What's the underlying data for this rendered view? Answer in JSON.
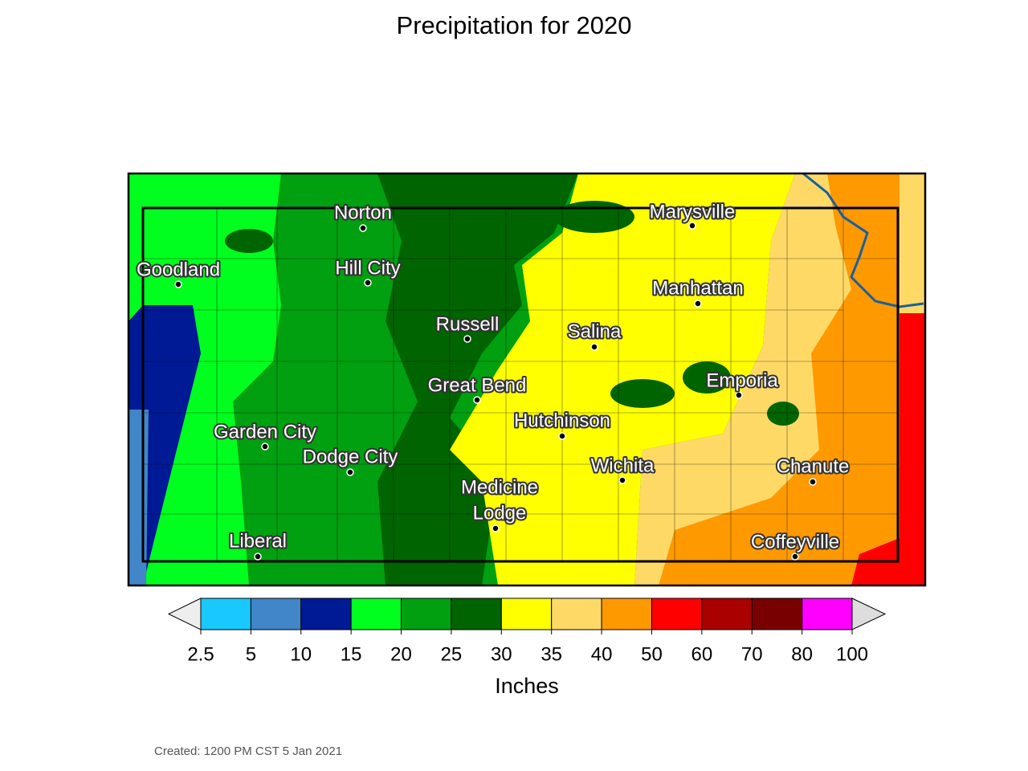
{
  "title": "Precipitation for 2020",
  "map": {
    "cities": [
      {
        "label_lines": [
          "Norton"
        ]
      },
      {
        "label_lines": [
          "Goodland"
        ]
      },
      {
        "label_lines": [
          "Hill City"
        ]
      },
      {
        "label_lines": [
          "Russell"
        ]
      },
      {
        "label_lines": [
          "Salina"
        ]
      },
      {
        "label_lines": [
          "Marysville"
        ]
      },
      {
        "label_lines": [
          "Manhattan"
        ]
      },
      {
        "label_lines": [
          "Great Bend"
        ]
      },
      {
        "label_lines": [
          "Hutchinson"
        ]
      },
      {
        "label_lines": [
          "Emporia"
        ]
      },
      {
        "label_lines": [
          "Garden City"
        ]
      },
      {
        "label_lines": [
          "Dodge City"
        ]
      },
      {
        "label_lines": [
          "Wichita"
        ]
      },
      {
        "label_lines": [
          "Chanute"
        ]
      },
      {
        "label_lines": [
          "Medicine",
          "Lodge"
        ]
      },
      {
        "label_lines": [
          "Liberal"
        ]
      },
      {
        "label_lines": [
          "Coffeyville"
        ]
      }
    ]
  },
  "colorbar": {
    "ticks": [
      2.5,
      5,
      10,
      15,
      20,
      25,
      30,
      35,
      40,
      50,
      60,
      70,
      80,
      100
    ],
    "colors": [
      "#19c8ff",
      "#4186c8",
      "#001a96",
      "#00ff1e",
      "#00a010",
      "#006400",
      "#ffff00",
      "#ffd966",
      "#ff9900",
      "#ff0000",
      "#aa0000",
      "#780000",
      "#ff00ff"
    ],
    "under_color": "#eeeeee",
    "over_color": "#dddddd",
    "label": "Inches"
  },
  "footer": "Created: 1200 PM CST 5 Jan 2021"
}
